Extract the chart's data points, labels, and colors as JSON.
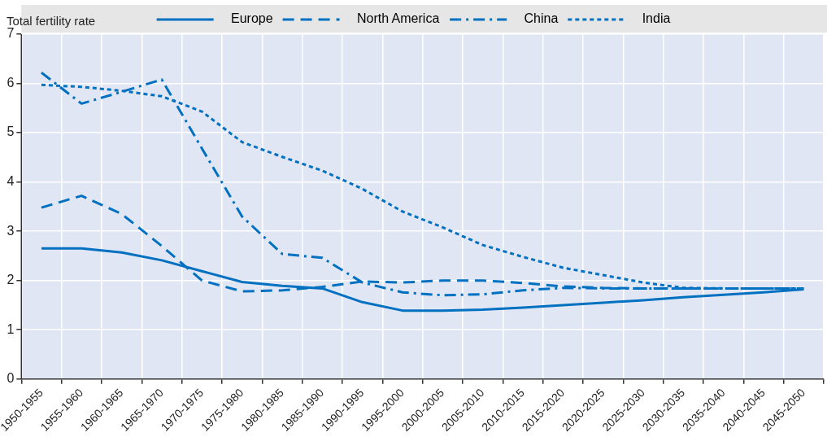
{
  "chart_data": {
    "type": "line",
    "ylabel": "Total fertility rate",
    "categories": [
      "1950-1955",
      "1955-1960",
      "1960-1965",
      "1965-1970",
      "1970-1975",
      "1975-1980",
      "1980-1985",
      "1985-1990",
      "1990-1995",
      "1995-2000",
      "2000-2005",
      "2005-2010",
      "2010-2015",
      "2015-2020",
      "2020-2025",
      "2025-2030",
      "2030-2035",
      "2035-2040",
      "2040-2045",
      "2045-2050"
    ],
    "series": [
      {
        "name": "Europe",
        "color": "#0070c0",
        "line_style": "solid",
        "values": [
          2.65,
          2.65,
          2.57,
          2.41,
          2.19,
          1.97,
          1.89,
          1.84,
          1.56,
          1.39,
          1.39,
          1.41,
          1.45,
          1.5,
          1.55,
          1.6,
          1.66,
          1.71,
          1.76,
          1.82
        ]
      },
      {
        "name": "North America",
        "color": "#0070c0",
        "line_style": "dashed",
        "values": [
          3.48,
          3.72,
          3.35,
          2.7,
          2.0,
          1.78,
          1.8,
          1.87,
          1.98,
          1.96,
          2.0,
          2.0,
          1.95,
          1.88,
          1.85,
          1.84,
          1.84,
          1.84,
          1.84,
          1.84
        ]
      },
      {
        "name": "China",
        "color": "#0070c0",
        "line_style": "dashdot",
        "values": [
          6.22,
          5.59,
          5.83,
          6.08,
          4.68,
          3.3,
          2.54,
          2.46,
          1.96,
          1.76,
          1.7,
          1.72,
          1.8,
          1.85,
          1.84,
          1.84,
          1.84,
          1.84,
          1.84,
          1.84
        ]
      },
      {
        "name": "India",
        "color": "#0070c0",
        "line_style": "dotted",
        "values": [
          5.97,
          5.93,
          5.85,
          5.74,
          5.43,
          4.81,
          4.51,
          4.23,
          3.86,
          3.4,
          3.08,
          2.72,
          2.48,
          2.26,
          2.11,
          1.96,
          1.85,
          1.84,
          1.84,
          1.84
        ]
      }
    ],
    "ylim": [
      0,
      7
    ],
    "yticks": [
      0,
      1,
      2,
      3,
      4,
      5,
      6,
      7
    ],
    "grid": true,
    "legend": "top",
    "marker": "none"
  }
}
